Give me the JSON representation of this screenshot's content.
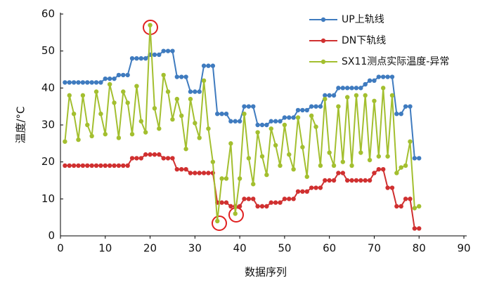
{
  "chart_data": {
    "type": "line",
    "xlabel": "数据序列",
    "ylabel": "温度/°C",
    "x": [
      1,
      2,
      3,
      4,
      5,
      6,
      7,
      8,
      9,
      10,
      11,
      12,
      13,
      14,
      15,
      16,
      17,
      18,
      19,
      20,
      21,
      22,
      23,
      24,
      25,
      26,
      27,
      28,
      29,
      30,
      31,
      32,
      33,
      34,
      35,
      36,
      37,
      38,
      39,
      40,
      41,
      42,
      43,
      44,
      45,
      46,
      47,
      48,
      49,
      50,
      51,
      52,
      53,
      54,
      55,
      56,
      57,
      58,
      59,
      60,
      61,
      62,
      63,
      64,
      65,
      66,
      67,
      68,
      69,
      70,
      71,
      72,
      73,
      74,
      75,
      76,
      77,
      78,
      79,
      80
    ],
    "series": [
      {
        "name": "UP上轨线",
        "color": "#3f7bbf",
        "values": [
          41.5,
          41.5,
          41.5,
          41.5,
          41.5,
          41.5,
          41.5,
          41.5,
          41.5,
          42.5,
          42.5,
          42.5,
          43.5,
          43.5,
          43.5,
          48,
          48,
          48,
          48,
          49,
          49,
          49,
          50,
          50,
          50,
          43,
          43,
          43,
          39,
          39,
          39,
          46,
          46,
          46,
          33,
          33,
          33,
          31,
          31,
          31,
          35,
          35,
          35,
          30,
          30,
          30,
          31,
          31,
          31,
          32,
          32,
          32,
          34,
          34,
          34,
          35,
          35,
          35,
          38,
          38,
          38,
          40,
          40,
          40,
          40,
          40,
          40,
          41,
          42,
          42,
          43,
          43,
          43,
          43,
          33,
          33,
          35,
          35,
          21,
          21
        ]
      },
      {
        "name": "DN下轨线",
        "color": "#d03030",
        "values": [
          19,
          19,
          19,
          19,
          19,
          19,
          19,
          19,
          19,
          19,
          19,
          19,
          19,
          19,
          19,
          21,
          21,
          21,
          22,
          22,
          22,
          22,
          21,
          21,
          21,
          18,
          18,
          18,
          17,
          17,
          17,
          17,
          17,
          17,
          9,
          9,
          9,
          8,
          8,
          8,
          10,
          10,
          10,
          8,
          8,
          8,
          9,
          9,
          9,
          10,
          10,
          10,
          12,
          12,
          12,
          13,
          13,
          13,
          15,
          15,
          15,
          17,
          17,
          15,
          15,
          15,
          15,
          15,
          15,
          17,
          18,
          18,
          13,
          13,
          8,
          8,
          10,
          10,
          2,
          2
        ]
      },
      {
        "name": "SX11测点实际温度-异常",
        "color": "#a3bf2f",
        "values": [
          25.5,
          38,
          33,
          26,
          38,
          30,
          27,
          39,
          33,
          27.5,
          41,
          36,
          26.5,
          39,
          36,
          27.5,
          40.5,
          31,
          28,
          57,
          34.5,
          29,
          43.5,
          39,
          31.5,
          37,
          32.5,
          23.5,
          37,
          30.5,
          26.5,
          42,
          29,
          20,
          4,
          15.5,
          15.5,
          25,
          6,
          15.5,
          33,
          21,
          14,
          28,
          21.5,
          16.5,
          29,
          24.5,
          19,
          30,
          22,
          18,
          32,
          24,
          16,
          32.5,
          29.5,
          19,
          37,
          22.5,
          19,
          35,
          20,
          37.5,
          19,
          38,
          22.5,
          38,
          20.5,
          36.5,
          21.5,
          40,
          21.5,
          38,
          17,
          18.5,
          19,
          25.5,
          7.5,
          8
        ]
      }
    ],
    "xlim": [
      0,
      90
    ],
    "xticks": [
      0,
      10,
      20,
      30,
      40,
      50,
      60,
      70,
      80,
      90
    ],
    "ylim": [
      0,
      60
    ],
    "yticks": [
      0,
      10,
      20,
      30,
      40,
      50,
      60
    ]
  }
}
